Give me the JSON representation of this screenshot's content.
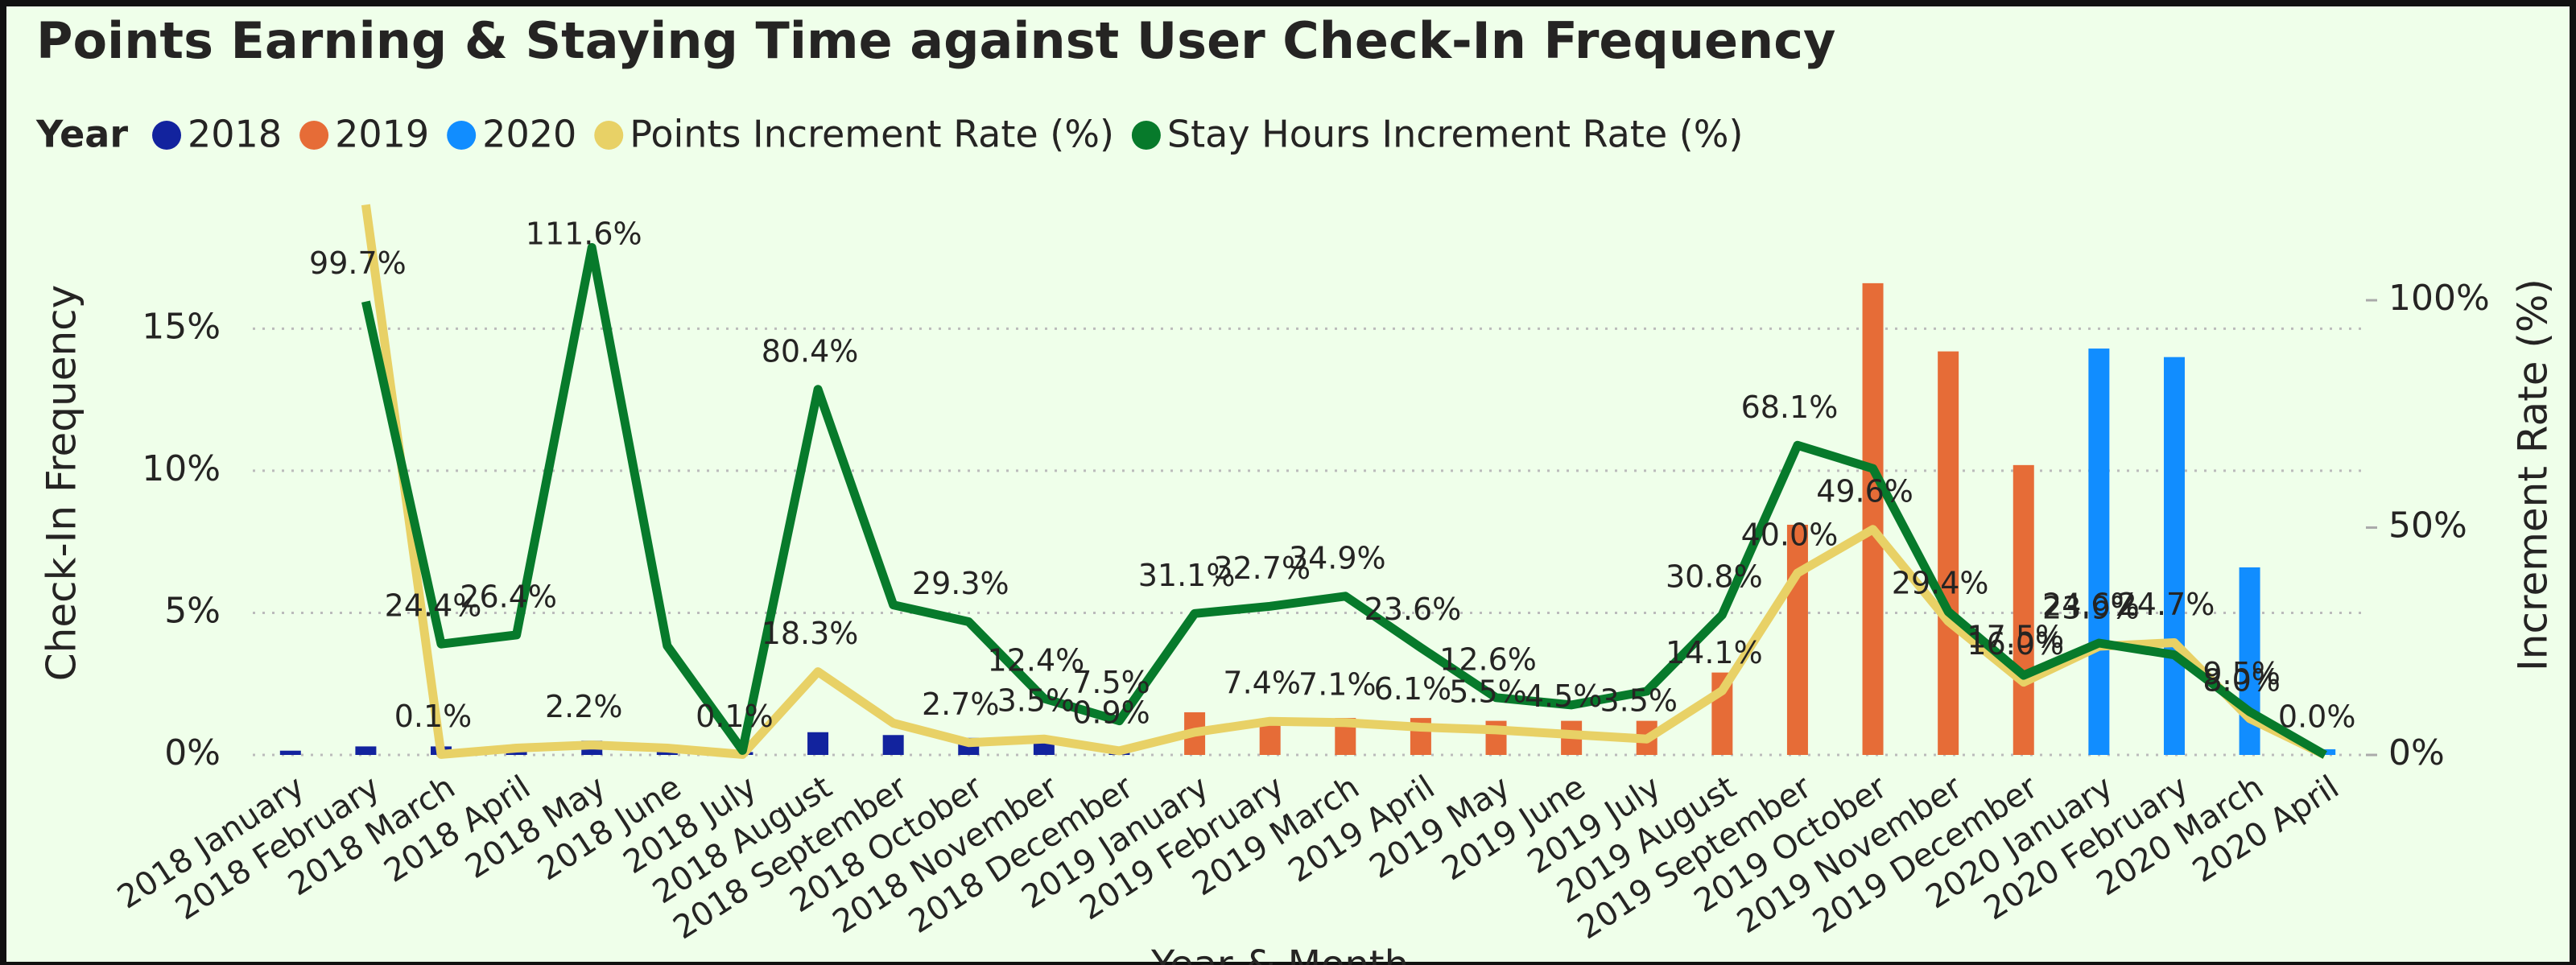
{
  "chart_data": {
    "type": "bar-line",
    "title": "Points Earning & Staying Time against User Check-In Frequency",
    "legend_title": "Year",
    "x_label": "Year & Month",
    "y_label": "Check-In Frequency",
    "y2_label": "Increment Rate (%)",
    "categories": [
      "2018 January",
      "2018 February",
      "2018 March",
      "2018 April",
      "2018 May",
      "2018 June",
      "2018 July",
      "2018 August",
      "2018 September",
      "2018 October",
      "2018 November",
      "2018 December",
      "2019 January",
      "2019 February",
      "2019 March",
      "2019 April",
      "2019 May",
      "2019 June",
      "2019 July",
      "2019 August",
      "2019 September",
      "2019 October",
      "2019 November",
      "2019 December",
      "2020 January",
      "2020 February",
      "2020 March",
      "2020 April"
    ],
    "ylim": [
      0,
      19.4
    ],
    "yticks": [
      {
        "value": 0,
        "label": "0%"
      },
      {
        "value": 5,
        "label": "5%"
      },
      {
        "value": 10,
        "label": "10%"
      },
      {
        "value": 15,
        "label": "15%"
      }
    ],
    "y2lim": [
      0,
      121.25
    ],
    "y2ticks": [
      {
        "value": 0,
        "label": "0%"
      },
      {
        "value": 50,
        "label": "50%"
      },
      {
        "value": 100,
        "label": "100%"
      }
    ],
    "grid": true,
    "series": [
      {
        "name": "2018",
        "kind": "bar",
        "color": "#12239e",
        "values": [
          0.15,
          0.3,
          0.3,
          0.3,
          0.5,
          0.3,
          0.1,
          0.8,
          0.7,
          0.6,
          0.5,
          0.1,
          null,
          null,
          null,
          null,
          null,
          null,
          null,
          null,
          null,
          null,
          null,
          null,
          null,
          null,
          null,
          null
        ]
      },
      {
        "name": "2019",
        "kind": "bar",
        "color": "#e66c37",
        "values": [
          null,
          null,
          null,
          null,
          null,
          null,
          null,
          null,
          null,
          null,
          null,
          null,
          1.5,
          1.2,
          1.3,
          1.3,
          1.2,
          1.2,
          1.2,
          2.9,
          8.1,
          16.6,
          14.2,
          10.2,
          null,
          null,
          null,
          null
        ]
      },
      {
        "name": "2020",
        "kind": "bar",
        "color": "#118dff",
        "values": [
          null,
          null,
          null,
          null,
          null,
          null,
          null,
          null,
          null,
          null,
          null,
          null,
          null,
          null,
          null,
          null,
          null,
          null,
          null,
          null,
          null,
          null,
          null,
          null,
          14.3,
          14.0,
          6.6,
          0.2
        ]
      },
      {
        "name": "Points Increment Rate (%)",
        "kind": "line",
        "axis": "y2",
        "color": "#e8d166",
        "values": [
          null,
          121,
          0.1,
          1.5,
          2.2,
          1.5,
          0.1,
          18.3,
          7.0,
          2.7,
          3.5,
          0.9,
          5.0,
          7.4,
          7.1,
          6.1,
          5.5,
          4.5,
          3.5,
          14.1,
          40.0,
          49.6,
          29.4,
          16.0,
          23.9,
          24.7,
          8.0,
          0.0
        ],
        "value_labels": [
          null,
          null,
          "0.1%",
          null,
          "2.2%",
          null,
          "0.1%",
          "18.3%",
          null,
          "2.7%",
          "3.5%",
          "0.9%",
          null,
          "7.4%",
          "7.1%",
          "6.1%",
          "5.5%",
          "4.5%",
          "3.5%",
          "14.1%",
          "40.0%",
          "49.6%",
          "29.4%",
          "16.0%",
          "23.9%",
          "24.7%",
          "8.0%",
          "0.0%"
        ]
      },
      {
        "name": "Stay Hours Increment Rate (%)",
        "kind": "line",
        "axis": "y2",
        "color": "#077a2b",
        "values": [
          null,
          99.7,
          24.4,
          26.4,
          111.6,
          24.0,
          1.0,
          80.4,
          33.0,
          29.3,
          12.4,
          7.5,
          31.1,
          32.7,
          34.9,
          23.6,
          12.6,
          11.0,
          14.0,
          30.8,
          68.1,
          63.0,
          31.5,
          17.5,
          24.6,
          22.0,
          9.5,
          0.0
        ],
        "value_labels": [
          null,
          "99.7%",
          "24.4%",
          "26.4%",
          "111.6%",
          null,
          null,
          "80.4%",
          null,
          "29.3%",
          "12.4%",
          "7.5%",
          "31.1%",
          "32.7%",
          "34.9%",
          "23.6%",
          "12.6%",
          null,
          null,
          "30.8%",
          "68.1%",
          null,
          null,
          "17.5%",
          "24.6%",
          null,
          "9.5%",
          null
        ]
      }
    ]
  }
}
